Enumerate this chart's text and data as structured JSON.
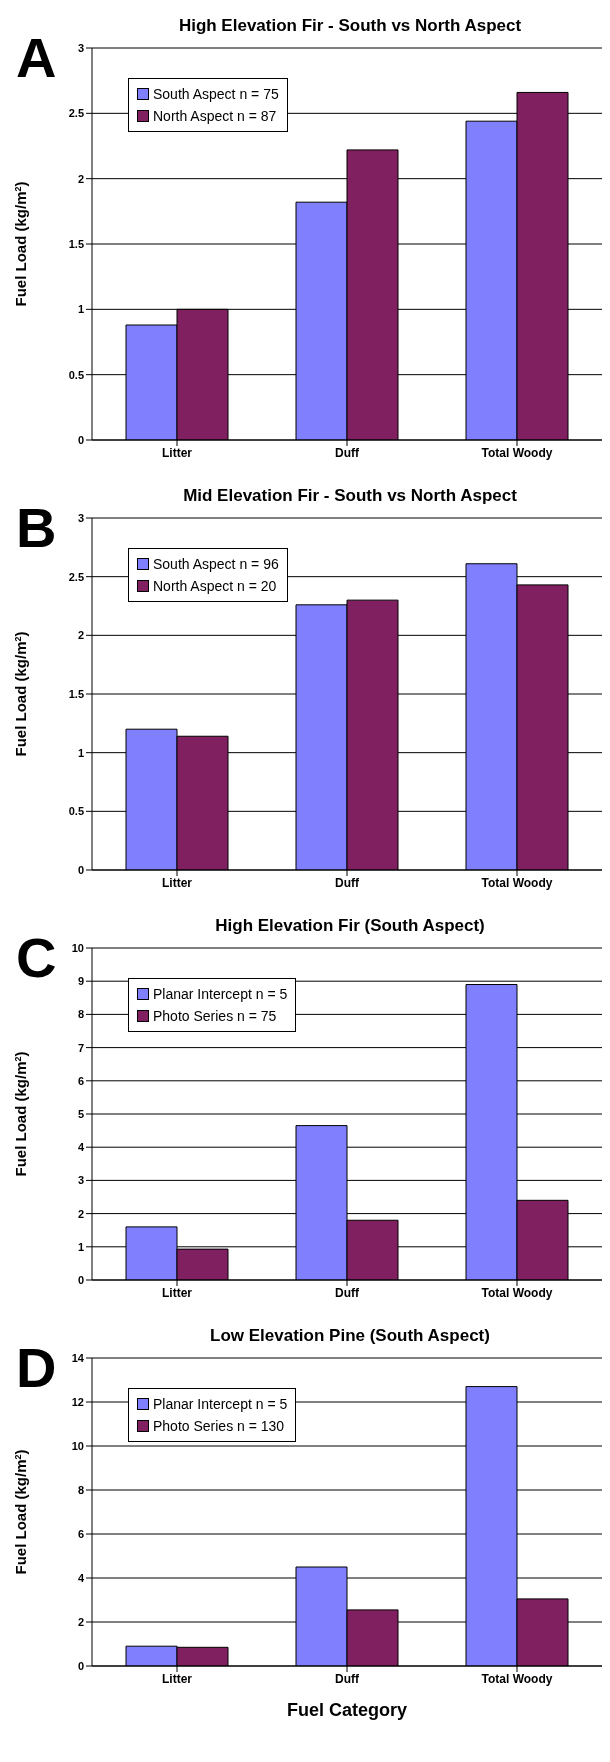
{
  "chart_data": [
    {
      "type": "bar",
      "title": "High Elevation Fir - South vs North Aspect",
      "ylabel": "Fuel Load (kg/m$^{2}$)",
      "annotations": [
        "A"
      ],
      "categories": [
        "Litter",
        "Duff",
        "Total Woody"
      ],
      "series": [
        {
          "name": "South Aspect n = 75",
          "color": "#8080ff",
          "values": [
            0.88,
            1.82,
            2.44
          ]
        },
        {
          "name": "North Aspect n = 87",
          "color": "#802060",
          "values": [
            1.0,
            2.22,
            2.66
          ]
        }
      ],
      "ylim": [
        0,
        3
      ],
      "yticks": [
        0,
        0.5,
        1,
        1.5,
        2,
        2.5,
        3
      ],
      "grid": "y",
      "legend": "top left"
    },
    {
      "type": "bar",
      "title": "Mid Elevation Fir - South vs North Aspect",
      "ylabel": "Fuel Load (kg/m$^{2}$)",
      "annotations": [
        "B"
      ],
      "categories": [
        "Litter",
        "Duff",
        "Total Woody"
      ],
      "series": [
        {
          "name": "South Aspect n = 96",
          "color": "#8080ff",
          "values": [
            1.2,
            2.26,
            2.61
          ]
        },
        {
          "name": "North Aspect n = 20",
          "color": "#802060",
          "values": [
            1.14,
            2.3,
            2.43
          ]
        }
      ],
      "ylim": [
        0,
        3
      ],
      "yticks": [
        0,
        0.5,
        1,
        1.5,
        2,
        2.5,
        3
      ],
      "grid": "y",
      "legend": "top left"
    },
    {
      "type": "bar",
      "title": "High Elevation Fir (South Aspect)",
      "ylabel": "Fuel Load (kg/m$^{2}$)",
      "annotations": [
        "C"
      ],
      "categories": [
        "Litter",
        "Duff",
        "Total Woody"
      ],
      "series": [
        {
          "name": "Planar Intercept n = 5",
          "color": "#8080ff",
          "values": [
            1.6,
            4.65,
            8.9
          ]
        },
        {
          "name": "Photo Series n = 75",
          "color": "#802060",
          "values": [
            0.93,
            1.8,
            2.4
          ]
        }
      ],
      "ylim": [
        0,
        10
      ],
      "yticks": [
        0,
        1,
        2,
        3,
        4,
        5,
        6,
        7,
        8,
        9,
        10
      ],
      "grid": "y",
      "legend": "top left"
    },
    {
      "type": "bar",
      "title": "Low Elevation Pine (South Aspect)",
      "xlabel": "Fuel Category",
      "ylabel": "Fuel Load (kg/m$^{2}$)",
      "annotations": [
        "D"
      ],
      "categories": [
        "Litter",
        "Duff",
        "Total Woody"
      ],
      "series": [
        {
          "name": "Planar Intercept n = 5",
          "color": "#8080ff",
          "values": [
            0.9,
            4.5,
            12.7
          ]
        },
        {
          "name": "Photo Series n = 130",
          "color": "#802060",
          "values": [
            0.85,
            2.55,
            3.05
          ]
        }
      ],
      "ylim": [
        0,
        14
      ],
      "yticks": [
        0,
        2,
        4,
        6,
        8,
        10,
        12,
        14
      ],
      "grid": "y",
      "legend": "top left"
    }
  ]
}
